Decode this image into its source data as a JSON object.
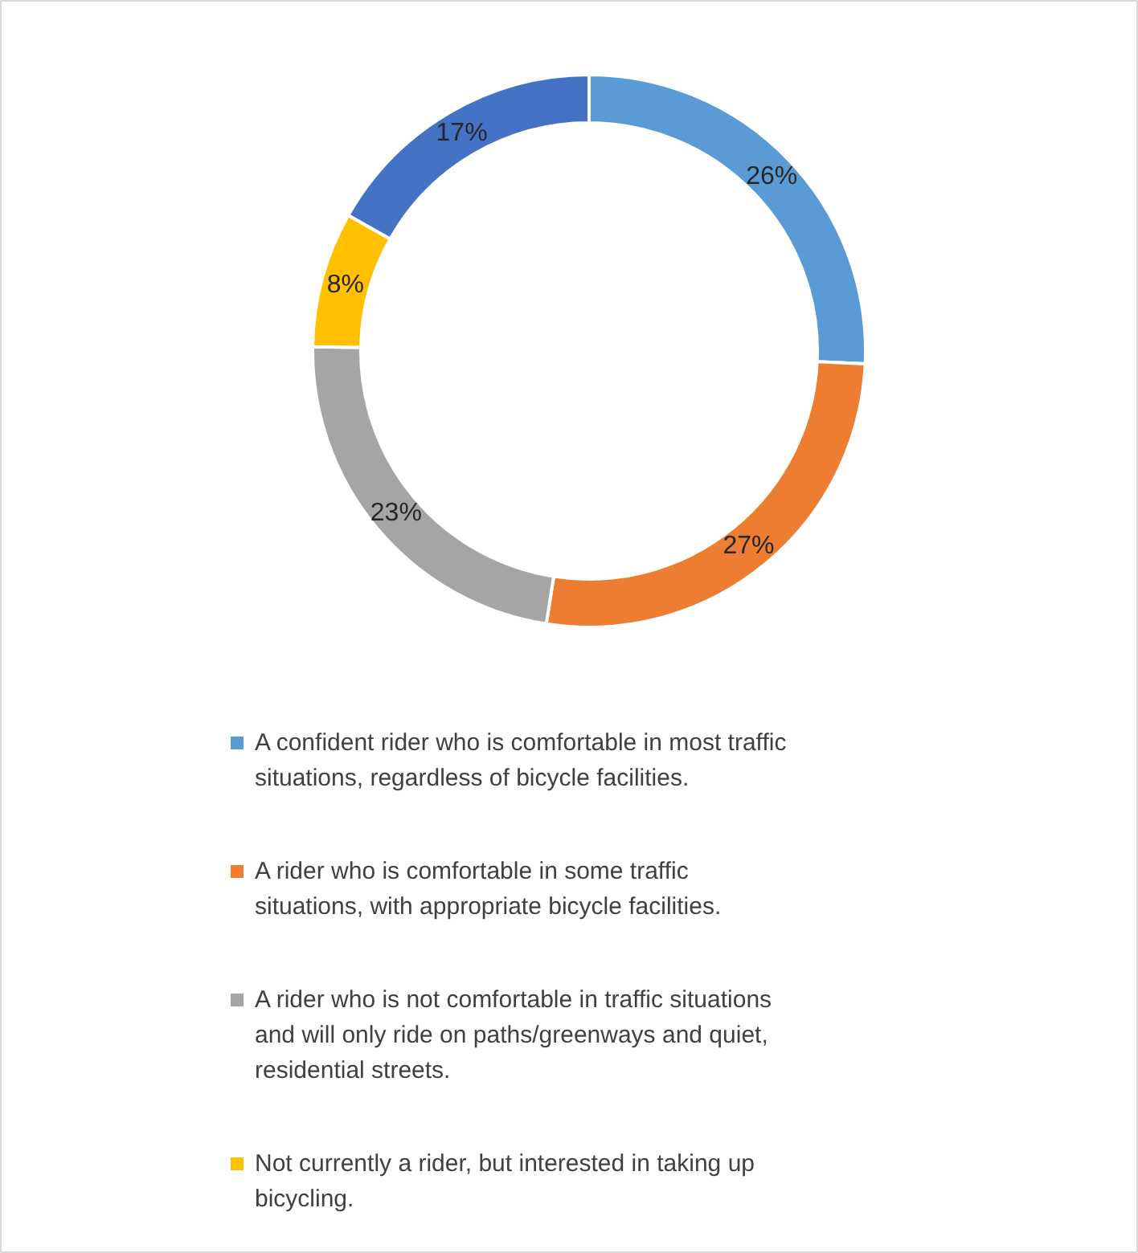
{
  "chart_data": {
    "type": "donut",
    "categories": [
      "A confident rider who is comfortable in most traffic situations, regardless of bicycle facilities.",
      "A rider who is comfortable in some traffic situations, with appropriate bicycle facilities.",
      "A rider who is not comfortable in traffic situations and will only ride on paths/greenways and quiet, residential streets.",
      "Not currently a rider, but interested in taking up bicycling.",
      null
    ],
    "values": [
      26,
      27,
      23,
      8,
      17
    ],
    "value_labels": [
      "26%",
      "27%",
      "23%",
      "8%",
      "17%"
    ],
    "colors": [
      "#5b9bd5",
      "#ed7d31",
      "#a5a5a5",
      "#ffc000",
      "#4472c4"
    ],
    "legend": "bottom"
  }
}
